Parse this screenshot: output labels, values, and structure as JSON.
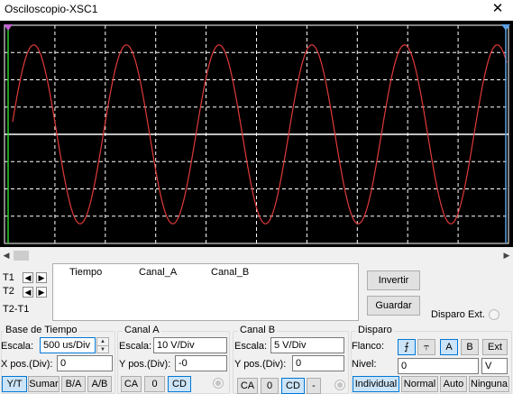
{
  "window": {
    "title": "Osciloscopio-XSC1",
    "close_glyph": "✕"
  },
  "screen": {
    "trace_color": "#e03a3a",
    "grid_color": "#ffffff",
    "background": "#000000",
    "cursor1_color": "#2ecc2e",
    "cursor2_color": "#5aa0e6",
    "marker_color": "#c060d0",
    "cycles": 5.33,
    "amplitude_fraction": 0.82,
    "start_phase_deg": 8
  },
  "cursors": {
    "t1_label": "T1",
    "t2_label": "T2",
    "t2t1_label": "T2-T1",
    "left_arrow": "◀",
    "right_arrow": "▶"
  },
  "readout": {
    "col_time": "Tiempo",
    "col_a": "Canal_A",
    "col_b": "Canal_B"
  },
  "buttons": {
    "invert": "Invertir",
    "save": "Guardar"
  },
  "ext_trigger": {
    "label": "Disparo Ext."
  },
  "timebase": {
    "title": "Base de Tiempo",
    "scale_label": "Escala:",
    "scale_value": "500 us/Div",
    "xpos_label": "X pos.(Div):",
    "xpos_value": "0",
    "modes": [
      "Y/T",
      "Sumar",
      "B/A",
      "A/B"
    ],
    "active_mode": "Y/T"
  },
  "channel_a": {
    "title": "Canal A",
    "scale_label": "Escala:",
    "scale_value": "10  V/Div",
    "ypos_label": "Y pos.(Div):",
    "ypos_value": "-0",
    "coupling": [
      "CA",
      "0",
      "CD"
    ],
    "active_coupling": "CD"
  },
  "channel_b": {
    "title": "Canal B",
    "scale_label": "Escala:",
    "scale_value": "5  V/Div",
    "ypos_label": "Y pos.(Div):",
    "ypos_value": "0",
    "coupling": [
      "CA",
      "0",
      "CD",
      "-"
    ],
    "active_coupling": "CD"
  },
  "trigger": {
    "title": "Disparo",
    "edge_label": "Flanco:",
    "edge_rise": "⨍",
    "edge_fall": "⥾",
    "sources": [
      "A",
      "B",
      "Ext"
    ],
    "active_source": "A",
    "level_label": "Nivel:",
    "level_value": "0",
    "level_unit": "V",
    "modes": [
      "Individual",
      "Normal",
      "Auto",
      "Ninguna"
    ],
    "active_mode": "Individual"
  }
}
